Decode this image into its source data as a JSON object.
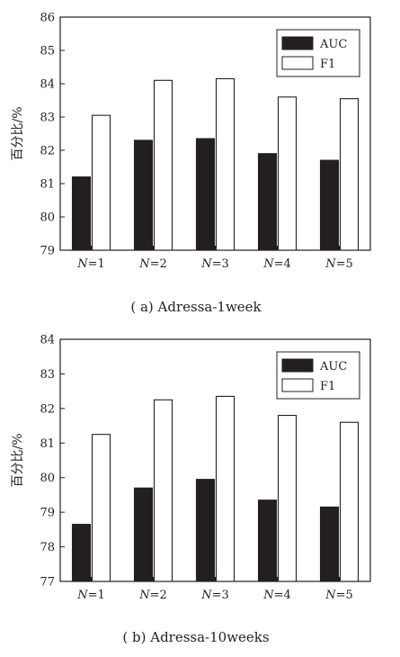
{
  "colors": {
    "auc": "#231f20",
    "f1": "#ffffff",
    "stroke": "#231f20"
  },
  "chart_data": [
    {
      "type": "bar",
      "caption": "( a) Adressa-1week",
      "categories": [
        "N=1",
        "N=2",
        "N=3",
        "N=4",
        "N=5"
      ],
      "ylabel": "百分比/%",
      "ylim": [
        79,
        86
      ],
      "yticks": [
        79,
        80,
        81,
        82,
        83,
        84,
        85,
        86
      ],
      "legend": "top-right",
      "series": [
        {
          "name": "AUC",
          "values": [
            81.2,
            82.3,
            82.35,
            81.9,
            81.7
          ]
        },
        {
          "name": "F1",
          "values": [
            83.05,
            84.1,
            84.15,
            83.6,
            83.55
          ]
        }
      ]
    },
    {
      "type": "bar",
      "caption": "( b) Adressa-10weeks",
      "categories": [
        "N=1",
        "N=2",
        "N=3",
        "N=4",
        "N=5"
      ],
      "ylabel": "百分比/%",
      "ylim": [
        77,
        84
      ],
      "yticks": [
        77,
        78,
        79,
        80,
        81,
        82,
        83,
        84
      ],
      "legend": "top-right",
      "series": [
        {
          "name": "AUC",
          "values": [
            78.65,
            79.7,
            79.95,
            79.35,
            79.15
          ]
        },
        {
          "name": "F1",
          "values": [
            81.25,
            82.25,
            82.35,
            81.8,
            81.6
          ]
        }
      ]
    }
  ]
}
